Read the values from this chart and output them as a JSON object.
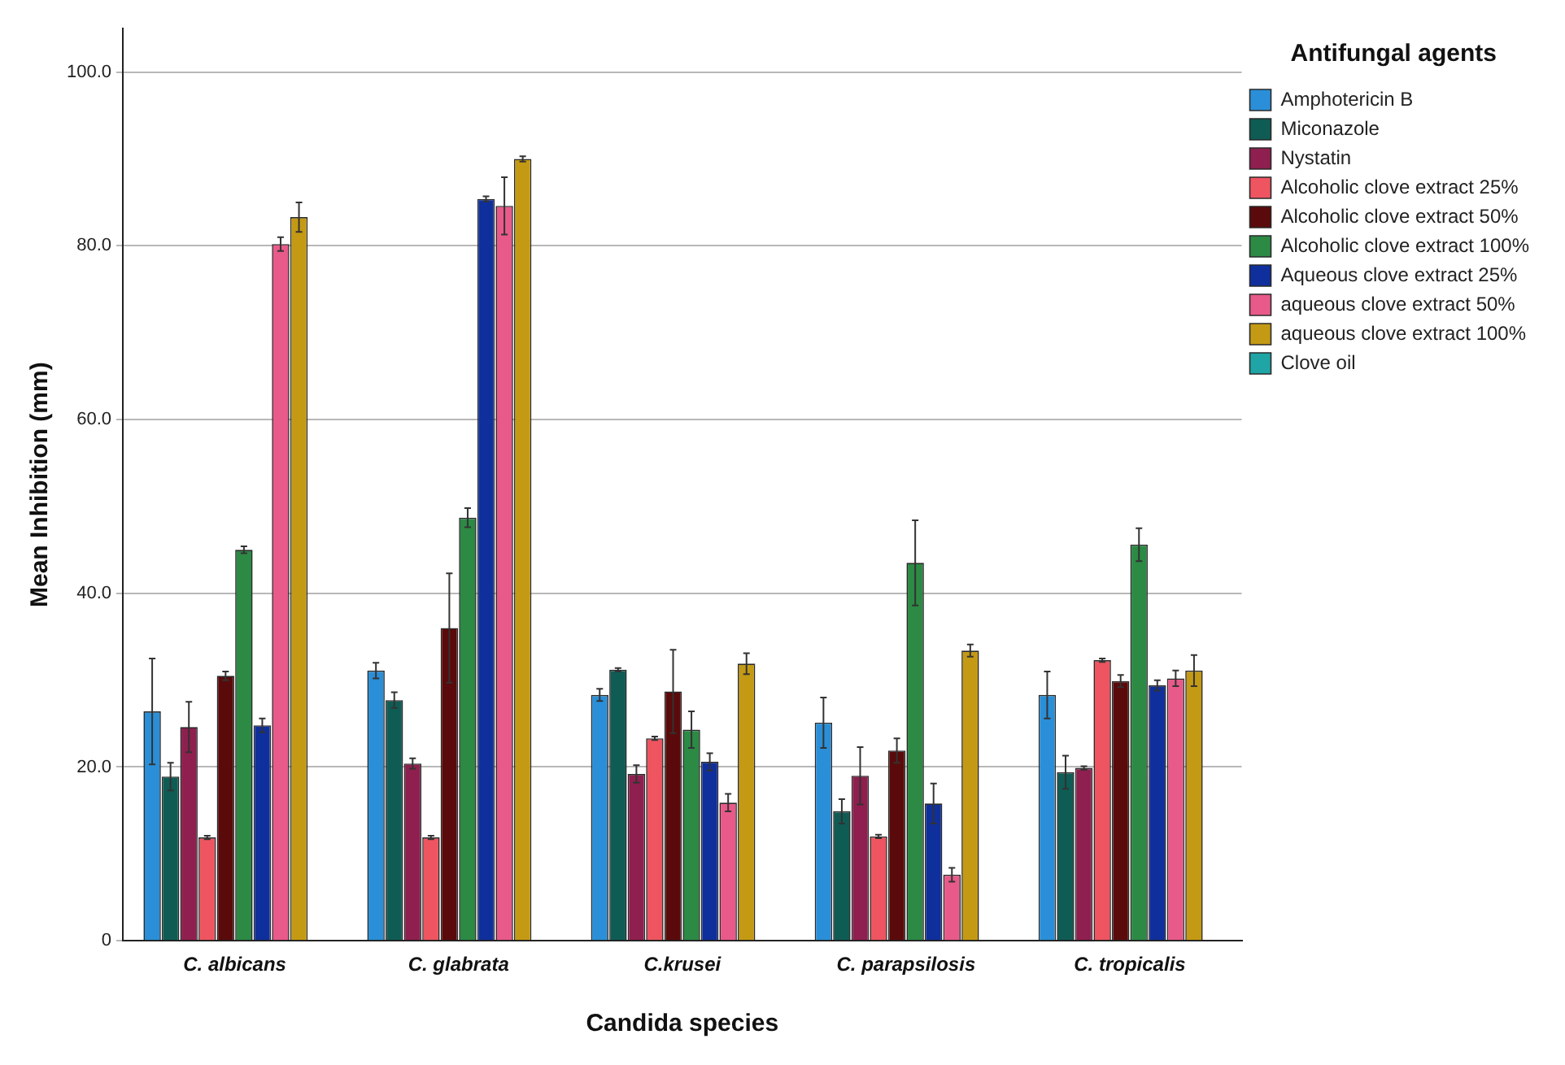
{
  "chart_data": {
    "type": "bar",
    "xlabel": "Candida species",
    "ylabel": "Mean Inhibition (mm)",
    "legend_title": "Antifungal agents",
    "categories": [
      "C. albicans",
      "C. glabrata",
      "C.krusei",
      "C. parapsilosis",
      "C. tropicalis"
    ],
    "series": [
      {
        "name": "Amphotericin B",
        "color": "#2a8fd8",
        "values": [
          26.4,
          31.1,
          28.3,
          25.1,
          28.3
        ],
        "errors": [
          6.1,
          0.9,
          0.7,
          2.9,
          2.7
        ]
      },
      {
        "name": "Miconazole",
        "color": "#0f5c55",
        "values": [
          18.9,
          27.7,
          31.2,
          14.9,
          19.4
        ],
        "errors": [
          1.6,
          0.9,
          0.2,
          1.4,
          1.9
        ]
      },
      {
        "name": "Nystatin",
        "color": "#8e1f4e",
        "values": [
          24.6,
          20.4,
          19.2,
          19.0,
          19.9
        ],
        "errors": [
          2.9,
          0.6,
          1.0,
          3.3,
          0.2
        ]
      },
      {
        "name": "Alcoholic clove extract 25%",
        "color": "#ee5560",
        "values": [
          11.9,
          11.9,
          23.3,
          12.0,
          32.3
        ],
        "errors": [
          0.2,
          0.2,
          0.2,
          0.2,
          0.2
        ]
      },
      {
        "name": "Alcoholic clove extract 50%",
        "color": "#5a0a0a",
        "values": [
          30.5,
          36.0,
          28.7,
          21.9,
          29.9
        ],
        "errors": [
          0.5,
          6.3,
          4.8,
          1.4,
          0.7
        ]
      },
      {
        "name": "Alcoholic clove extract 100%",
        "color": "#2c8a45",
        "values": [
          45.0,
          48.7,
          24.3,
          43.5,
          45.6
        ],
        "errors": [
          0.4,
          1.1,
          2.1,
          4.9,
          1.9
        ]
      },
      {
        "name": "Aqueous clove extract 25%",
        "color": "#0f2f9c",
        "values": [
          24.8,
          85.4,
          20.6,
          15.8,
          29.4
        ],
        "errors": [
          0.8,
          0.3,
          1.0,
          2.3,
          0.6
        ]
      },
      {
        "name": "aqueous clove extract 50%",
        "color": "#e85a8a",
        "values": [
          80.2,
          84.6,
          15.9,
          7.6,
          30.2
        ],
        "errors": [
          0.8,
          3.3,
          1.0,
          0.8,
          0.9
        ]
      },
      {
        "name": "aqueous clove extract 100%",
        "color": "#c49a14",
        "values": [
          83.3,
          90.0,
          31.9,
          33.4,
          31.1
        ],
        "errors": [
          1.7,
          0.3,
          1.2,
          0.7,
          1.8
        ]
      },
      {
        "name": "Clove oil",
        "color": "#1fa5a5",
        "values": [
          0,
          0,
          0,
          0,
          0
        ]
      }
    ],
    "ylim": [
      0,
      105
    ],
    "yticks": [
      0,
      {
        "value": 20,
        "label": "20.0"
      },
      {
        "value": 40,
        "label": "40.0"
      },
      {
        "value": 60,
        "label": "60.0"
      },
      {
        "value": 80,
        "label": "80.0"
      },
      {
        "value": 100,
        "label": "100.0"
      }
    ],
    "grid": "y",
    "legend": "top right"
  }
}
